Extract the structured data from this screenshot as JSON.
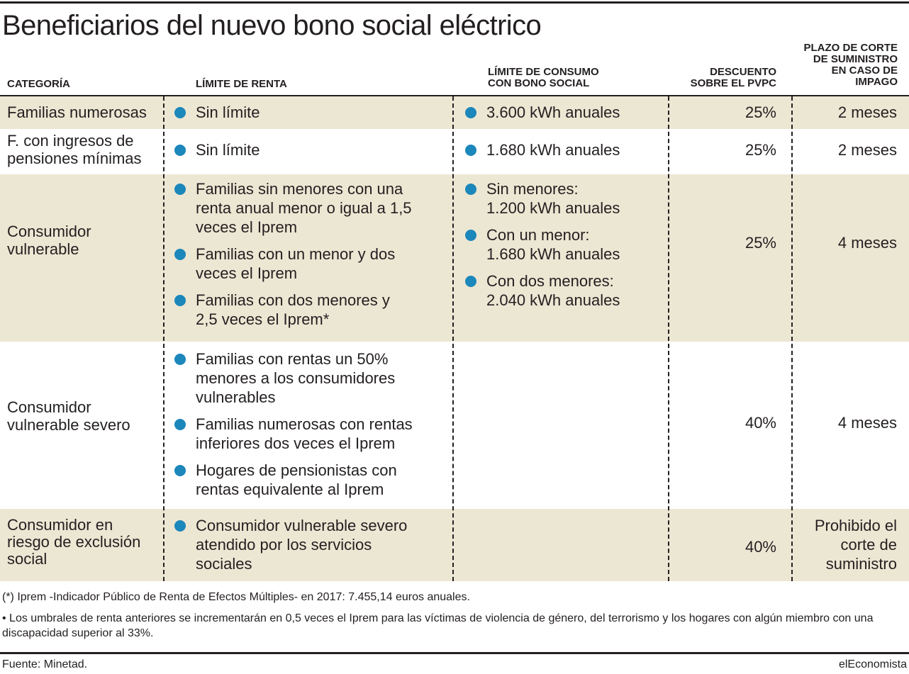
{
  "title": "Beneficiarios del nuevo bono social eléctrico",
  "headers": {
    "categoria": "CATEGORÍA",
    "renta": "LÍMITE DE RENTA",
    "consumo_1": "LÍMITE DE CONSUMO",
    "consumo_2": "CON BONO SOCIAL",
    "descuento_1": "DESCUENTO",
    "descuento_2": "SOBRE EL PVPC",
    "plazo_1": "PLAZO DE CORTE",
    "plazo_2": "DE SUMINISTRO",
    "plazo_3": "EN CASO DE",
    "plazo_4": "IMPAGO"
  },
  "rows": [
    {
      "categoria": [
        "Familias numerosas"
      ],
      "renta": [
        "Sin límite"
      ],
      "consumo": [
        [
          "3.600 kWh anuales"
        ]
      ],
      "descuento": "25%",
      "plazo": [
        "2 meses"
      ]
    },
    {
      "categoria": [
        "F. con ingresos de",
        "pensiones mínimas"
      ],
      "renta": [
        "Sin límite"
      ],
      "consumo": [
        [
          "1.680 kWh anuales"
        ]
      ],
      "descuento": "25%",
      "plazo": [
        "2 meses"
      ]
    },
    {
      "categoria": [
        "Consumidor",
        "vulnerable"
      ],
      "renta": [
        "Familias sin menores con una renta anual menor o igual a 1,5 veces el Iprem",
        "Familias con un menor y dos veces el Iprem",
        "Familias con dos menores y 2,5 veces el Iprem*"
      ],
      "consumo": [
        [
          "Sin menores:",
          "1.200 kWh anuales"
        ],
        [
          "Con un menor:",
          "1.680 kWh anuales"
        ],
        [
          "Con dos menores:",
          "2.040 kWh anuales"
        ]
      ],
      "descuento": "25%",
      "plazo": [
        "4 meses"
      ]
    },
    {
      "categoria": [
        "Consumidor",
        "vulnerable severo"
      ],
      "renta": [
        "Familias con rentas un 50% menores a los consumidores vulnerables",
        "Familias numerosas con rentas inferiores dos veces el Iprem",
        "Hogares de pensionistas con rentas equivalente al Iprem"
      ],
      "consumo": [],
      "descuento": "40%",
      "plazo": [
        "4 meses"
      ]
    },
    {
      "categoria": [
        "Consumidor en",
        "riesgo de exclusión",
        "social"
      ],
      "renta": [
        "Consumidor vulnerable severo atendido por los servicios sociales"
      ],
      "consumo": [],
      "descuento": "40%",
      "plazo": [
        "Prohibido el",
        "corte de",
        "suministro"
      ]
    }
  ],
  "notes": {
    "iprem": "(*) Iprem -Indicador Público de Renta de Efectos Múltiples- en 2017: 7.455,14 euros anuales.",
    "umbrales": "• Los umbrales de renta anteriores se incrementarán en 0,5 veces el Iprem para las víctimas de violencia de género, del terrorismo y los hogares con algún miembro con una discapacidad superior al 33%."
  },
  "footer": {
    "source": "Fuente: Minetad.",
    "brand": "elEconomista"
  },
  "colors": {
    "band": "#ece7d3",
    "bullet": "#1b87bb",
    "ink": "#231f20"
  }
}
